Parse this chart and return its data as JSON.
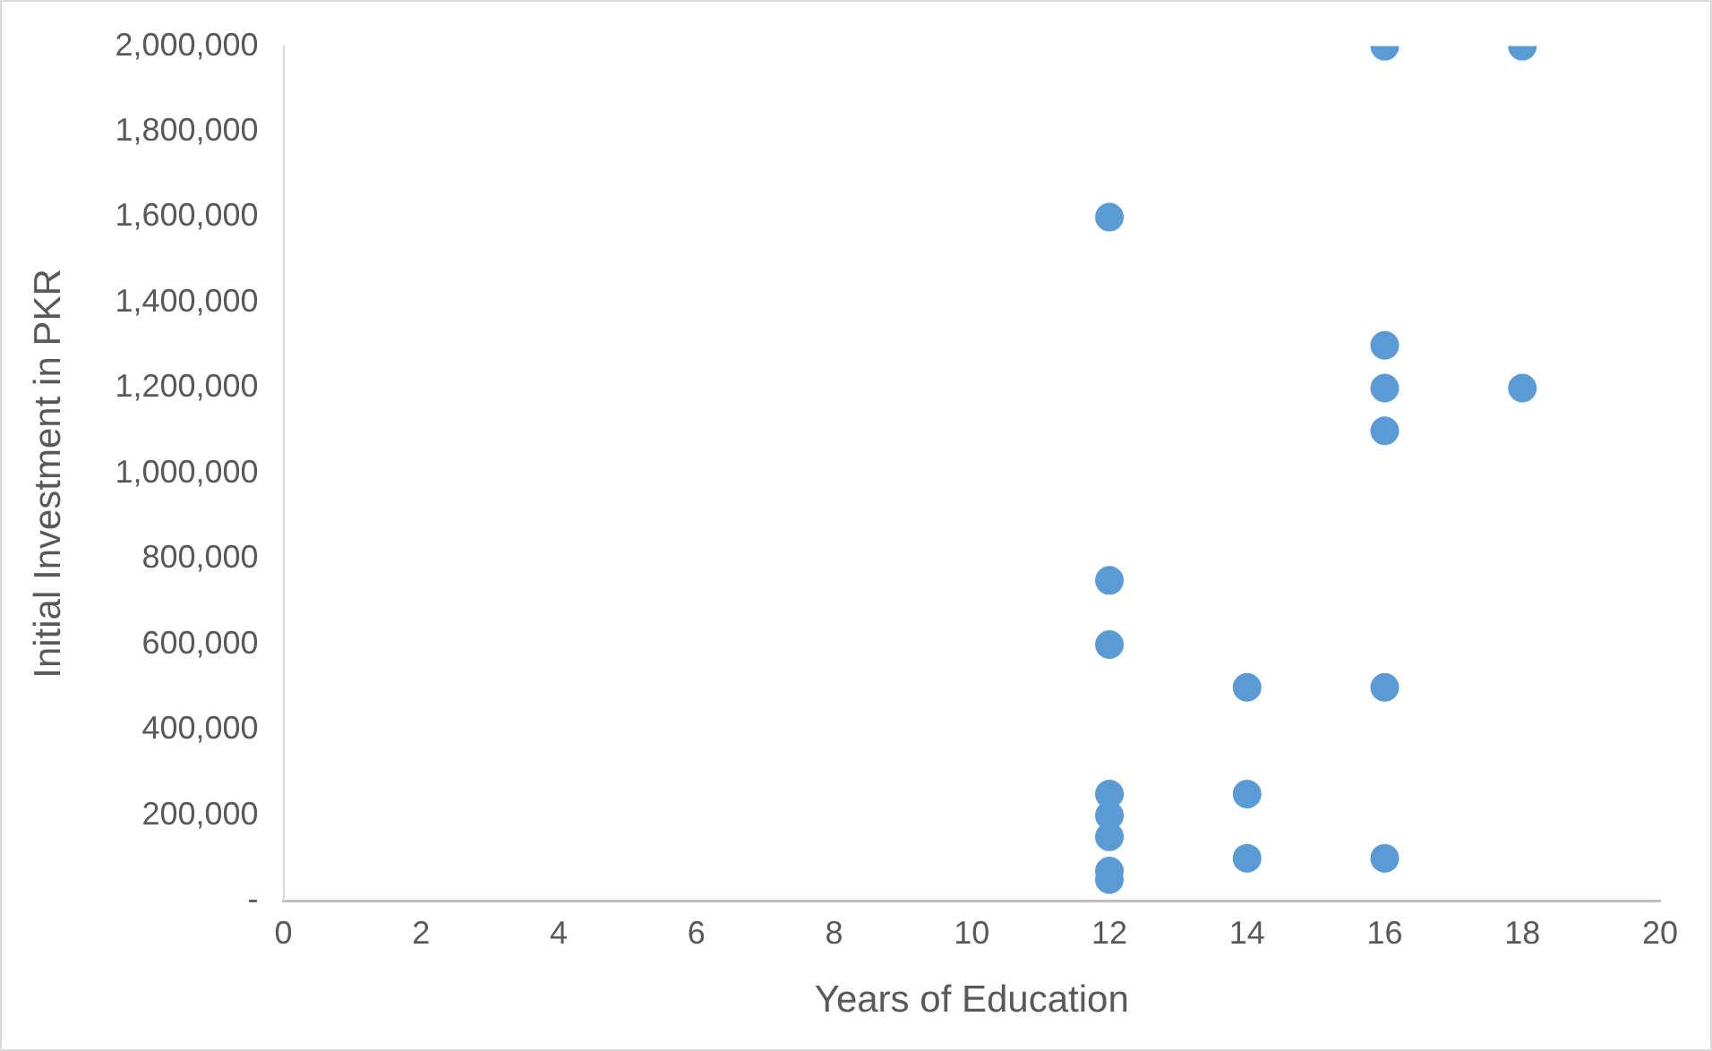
{
  "chart_data": {
    "type": "scatter",
    "xlabel": "Years of Education",
    "ylabel": "Initial Investment in PKR",
    "x": [
      12,
      12,
      12,
      12,
      12,
      12,
      12,
      12,
      14,
      14,
      14,
      16,
      16,
      16,
      16,
      16,
      16,
      18,
      18
    ],
    "values": [
      1600000,
      750000,
      600000,
      250000,
      200000,
      150000,
      70000,
      50000,
      500000,
      250000,
      100000,
      2000000,
      1300000,
      1200000,
      1100000,
      500000,
      100000,
      2000000,
      1200000
    ],
    "color": "#5b9bd5",
    "marker": "circle",
    "grid": false,
    "legend": false,
    "xlim": [
      0,
      20
    ],
    "xticks": [
      0,
      2,
      4,
      6,
      8,
      10,
      12,
      14,
      16,
      18,
      20
    ],
    "ylim": [
      0,
      2000000
    ],
    "yticks": [
      {
        "value": 0,
        "label": "-"
      },
      {
        "value": 200000,
        "label": "200,000"
      },
      {
        "value": 400000,
        "label": "400,000"
      },
      {
        "value": 600000,
        "label": "600,000"
      },
      {
        "value": 800000,
        "label": "800,000"
      },
      {
        "value": 1000000,
        "label": "1,000,000"
      },
      {
        "value": 1200000,
        "label": "1,200,000"
      },
      {
        "value": 1400000,
        "label": "1,400,000"
      },
      {
        "value": 1600000,
        "label": "1,600,000"
      },
      {
        "value": 1800000,
        "label": "1,800,000"
      },
      {
        "value": 2000000,
        "label": "2,000,000"
      }
    ]
  }
}
